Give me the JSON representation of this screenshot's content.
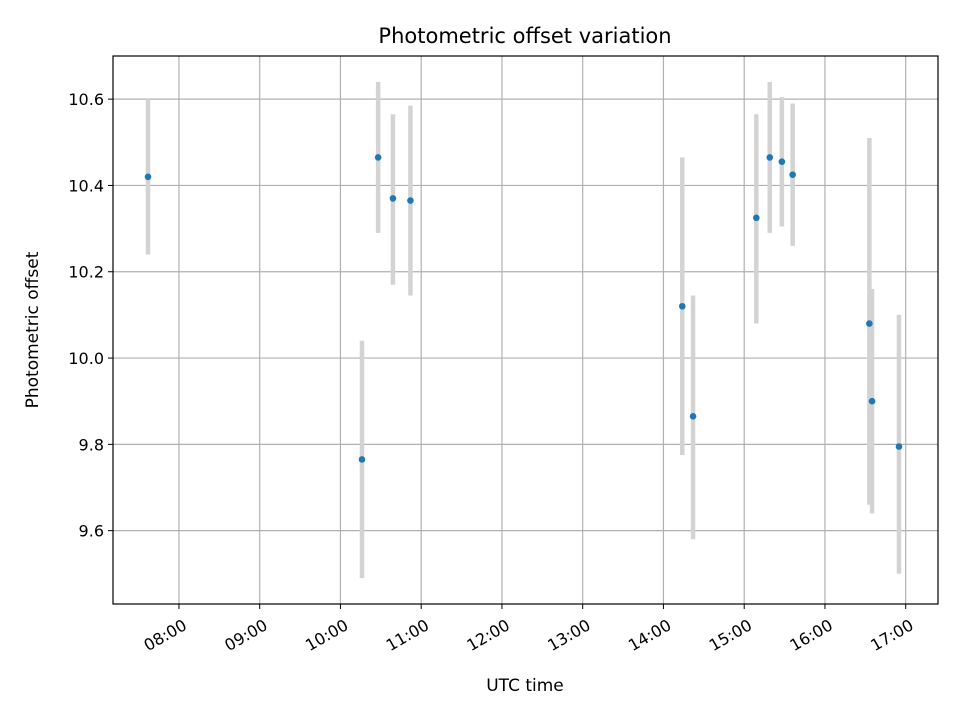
{
  "chart_data": {
    "type": "scatter",
    "title": "Photometric offset variation",
    "xlabel": "UTC time",
    "ylabel": "Photometric offset",
    "x_ticks": [
      "08:00",
      "09:00",
      "10:00",
      "11:00",
      "12:00",
      "13:00",
      "14:00",
      "15:00",
      "16:00",
      "17:00"
    ],
    "y_ticks": [
      "9.6",
      "9.8",
      "10.0",
      "10.2",
      "10.4",
      "10.6"
    ],
    "xlim": [
      "07:11",
      "17:24"
    ],
    "ylim": [
      9.43,
      10.7
    ],
    "grid": true,
    "error_bars": true,
    "colors": {
      "points": "#1f77b4",
      "error_bars": "#d3d3d3",
      "grid": "#b0b0b0"
    },
    "points": [
      {
        "x": "07:37",
        "y": 10.42,
        "y_low": 10.24,
        "y_high": 10.6
      },
      {
        "x": "10:16",
        "y": 9.765,
        "y_low": 9.49,
        "y_high": 10.04
      },
      {
        "x": "10:28",
        "y": 10.465,
        "y_low": 10.29,
        "y_high": 10.64
      },
      {
        "x": "10:39",
        "y": 10.37,
        "y_low": 10.17,
        "y_high": 10.565
      },
      {
        "x": "10:52",
        "y": 10.365,
        "y_low": 10.145,
        "y_high": 10.585
      },
      {
        "x": "14:14",
        "y": 10.12,
        "y_low": 9.775,
        "y_high": 10.465
      },
      {
        "x": "14:22",
        "y": 9.865,
        "y_low": 9.58,
        "y_high": 10.145
      },
      {
        "x": "15:09",
        "y": 10.325,
        "y_low": 10.08,
        "y_high": 10.565
      },
      {
        "x": "15:19",
        "y": 10.465,
        "y_low": 10.29,
        "y_high": 10.64
      },
      {
        "x": "15:28",
        "y": 10.455,
        "y_low": 10.305,
        "y_high": 10.605
      },
      {
        "x": "15:36",
        "y": 10.425,
        "y_low": 10.26,
        "y_high": 10.59
      },
      {
        "x": "16:33",
        "y": 10.08,
        "y_low": 9.66,
        "y_high": 10.51
      },
      {
        "x": "16:35",
        "y": 9.9,
        "y_low": 9.64,
        "y_high": 10.16
      },
      {
        "x": "16:55",
        "y": 9.795,
        "y_low": 9.5,
        "y_high": 10.1
      }
    ]
  }
}
